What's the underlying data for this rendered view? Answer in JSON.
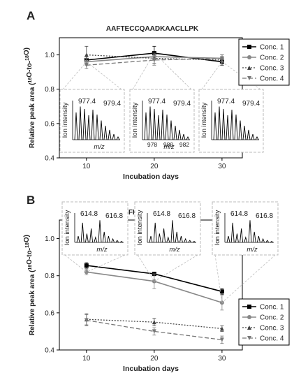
{
  "chart_data": [
    {
      "panel_letter": "A",
      "type": "line",
      "title": "AAFTECCQAADKAACLLPK",
      "xlabel": "Incubation days",
      "ylabel_main": "Relative peak area (",
      "ylabel_sup1": "16",
      "ylabel_mid": "O-to-",
      "ylabel_sup2": "18",
      "ylabel_end": "O)",
      "x": [
        10,
        20,
        30
      ],
      "xlim": [
        6,
        33
      ],
      "ylim": [
        0.4,
        1.1
      ],
      "yticks": [
        "0.4",
        "0.6",
        "0.8",
        "1.0"
      ],
      "xticks": [
        "10",
        "20",
        "30"
      ],
      "legend_position": "top-right",
      "series": [
        {
          "name": "Conc. 1",
          "values": [
            0.97,
            1.01,
            0.96
          ],
          "errors": [
            0.02,
            0.04,
            0.02
          ]
        },
        {
          "name": "Conc. 2",
          "values": [
            0.96,
            0.99,
            0.98
          ],
          "errors": [
            0.02,
            0.02,
            0.02
          ]
        },
        {
          "name": "Conc. 3",
          "values": [
            1.0,
            0.98,
            0.97
          ],
          "errors": [
            0.05,
            0.03,
            0.03
          ]
        },
        {
          "name": "Conc. 4",
          "values": [
            0.94,
            0.97,
            0.98
          ],
          "errors": [
            0.02,
            0.03,
            0.02
          ]
        }
      ],
      "insets": [
        {
          "peak_label_1": "977.4",
          "peak_label_2": "979.4",
          "axis_label": "Ion intensity",
          "xaxis_label": "m/z",
          "ticks": []
        },
        {
          "peak_label_1": "977.4",
          "peak_label_2": "979.4",
          "axis_label": "Ion intensity",
          "xaxis_label": "m/z",
          "ticks": [
            "978",
            "980",
            "982"
          ]
        },
        {
          "peak_label_1": "977.4",
          "peak_label_2": "979.4",
          "axis_label": "Ion intensity",
          "xaxis_label": "",
          "ticks": []
        }
      ]
    },
    {
      "panel_letter": "B",
      "type": "line",
      "title": "FKDLGEENFK",
      "xlabel": "Incubation days",
      "ylabel_main": "Relative peak area (",
      "ylabel_sup1": "16",
      "ylabel_mid": "O-to-",
      "ylabel_sup2": "18",
      "ylabel_end": "O)",
      "x": [
        10,
        20,
        30
      ],
      "xlim": [
        6,
        33
      ],
      "ylim": [
        0.4,
        1.1
      ],
      "yticks": [
        "0.4",
        "0.6",
        "0.8",
        "1.0"
      ],
      "xticks": [
        "10",
        "20",
        "30"
      ],
      "legend_position": "bottom-right",
      "series": [
        {
          "name": "Conc. 1",
          "values": [
            0.855,
            0.81,
            0.715
          ],
          "errors": [
            0.015,
            0.01,
            0.015
          ]
        },
        {
          "name": "Conc. 2",
          "values": [
            0.82,
            0.77,
            0.655
          ],
          "errors": [
            0.015,
            0.04,
            0.04
          ]
        },
        {
          "name": "Conc. 3",
          "values": [
            0.565,
            0.55,
            0.515
          ],
          "errors": [
            0.03,
            0.02,
            0.015
          ]
        },
        {
          "name": "Conc. 4",
          "values": [
            0.56,
            0.5,
            0.455
          ],
          "errors": [
            0.03,
            0.02,
            0.02
          ]
        }
      ],
      "insets": [
        {
          "peak_label_1": "614.8",
          "peak_label_2": "616.8",
          "axis_label": "Ion intensity",
          "xaxis_label": "m/z",
          "ticks": []
        },
        {
          "peak_label_1": "614.8",
          "peak_label_2": "616.8",
          "axis_label": "Ion intensity",
          "xaxis_label": "m/z",
          "ticks": []
        },
        {
          "peak_label_1": "614.8",
          "peak_label_2": "616.8",
          "axis_label": "Ion intensity",
          "xaxis_label": "m/z",
          "ticks": []
        }
      ]
    }
  ]
}
